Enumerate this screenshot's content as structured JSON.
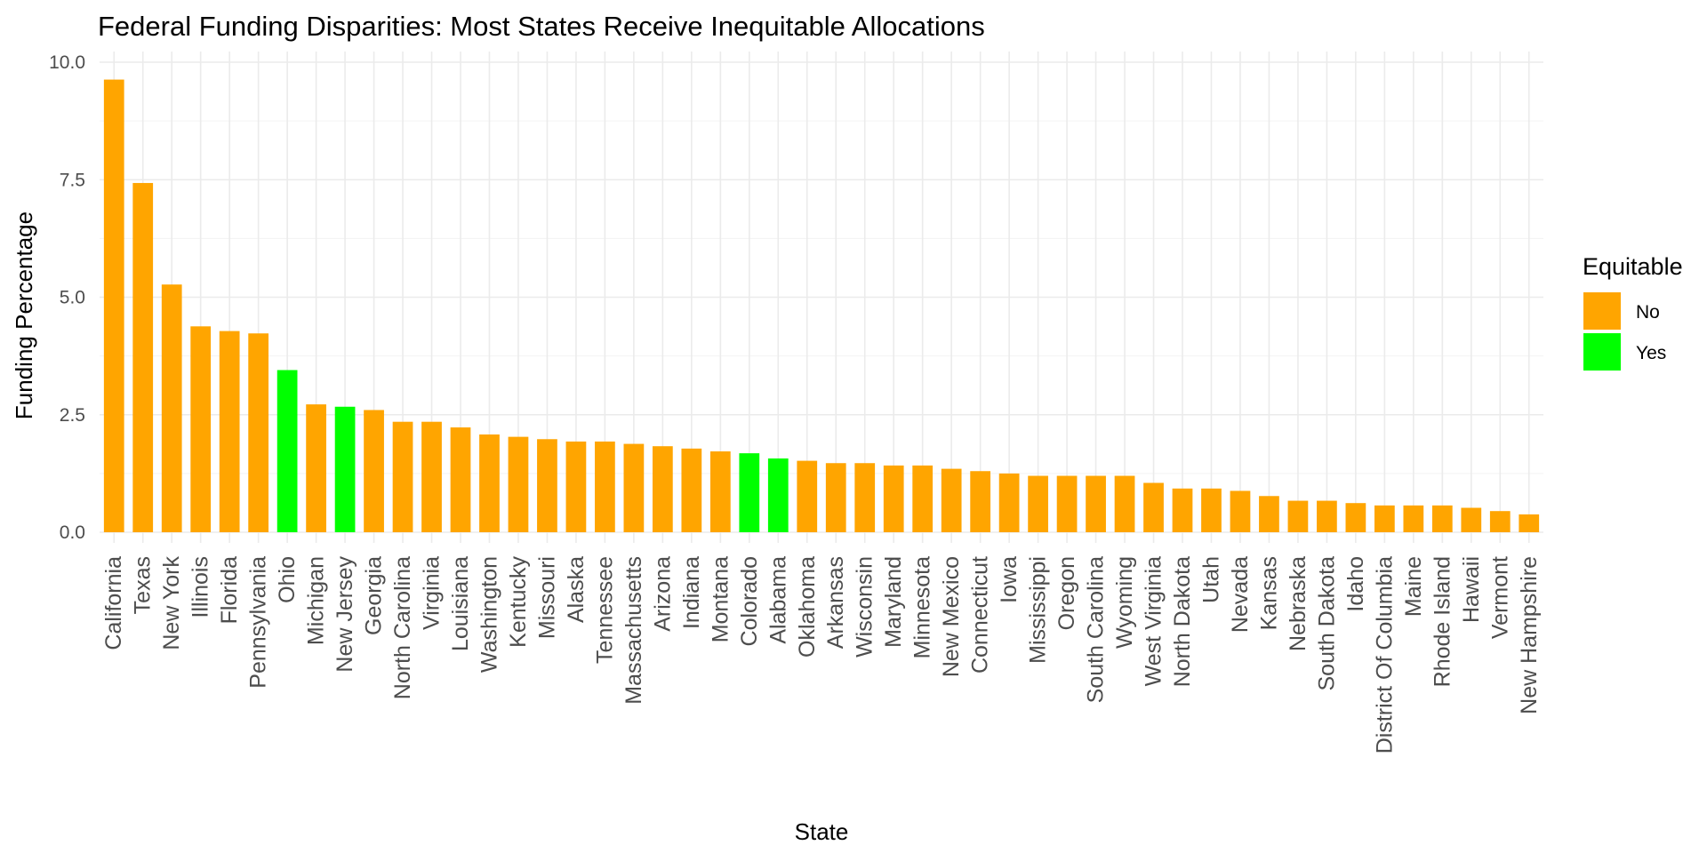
{
  "chart_data": {
    "type": "bar",
    "title": "Federal Funding Disparities: Most States Receive Inequitable Allocations",
    "xlabel": "State",
    "ylabel": "Funding Percentage",
    "ylim": [
      0,
      10
    ],
    "yticks": [
      0,
      2.5,
      5,
      7.5,
      10
    ],
    "ytick_labels": [
      "0.0",
      "2.5",
      "5.0",
      "7.5",
      "10.0"
    ],
    "grid": true,
    "legend": {
      "title": "Equitable",
      "placement": "right",
      "entries": [
        {
          "label": "No",
          "color": "#FFA500"
        },
        {
          "label": "Yes",
          "color": "#00FF00"
        }
      ]
    },
    "categories": [
      "California",
      "Texas",
      "New York",
      "Illinois",
      "Florida",
      "Pennsylvania",
      "Ohio",
      "Michigan",
      "New Jersey",
      "Georgia",
      "North Carolina",
      "Virginia",
      "Louisiana",
      "Washington",
      "Kentucky",
      "Missouri",
      "Alaska",
      "Tennessee",
      "Massachusetts",
      "Arizona",
      "Indiana",
      "Montana",
      "Colorado",
      "Alabama",
      "Oklahoma",
      "Arkansas",
      "Wisconsin",
      "Maryland",
      "Minnesota",
      "New Mexico",
      "Connecticut",
      "Iowa",
      "Mississippi",
      "Oregon",
      "South Carolina",
      "Wyoming",
      "West Virginia",
      "North Dakota",
      "Utah",
      "Nevada",
      "Kansas",
      "Nebraska",
      "South Dakota",
      "Idaho",
      "District Of Columbia",
      "Maine",
      "Rhode Island",
      "Hawaii",
      "Vermont",
      "New Hampshire"
    ],
    "values": [
      9.63,
      7.43,
      5.27,
      4.38,
      4.28,
      4.23,
      3.45,
      2.72,
      2.67,
      2.6,
      2.35,
      2.35,
      2.23,
      2.08,
      2.03,
      1.98,
      1.93,
      1.93,
      1.88,
      1.83,
      1.78,
      1.72,
      1.68,
      1.57,
      1.52,
      1.47,
      1.47,
      1.42,
      1.42,
      1.35,
      1.3,
      1.25,
      1.2,
      1.2,
      1.2,
      1.2,
      1.05,
      0.93,
      0.93,
      0.88,
      0.77,
      0.67,
      0.67,
      0.62,
      0.57,
      0.57,
      0.57,
      0.52,
      0.45,
      0.38
    ],
    "equitable": [
      "No",
      "No",
      "No",
      "No",
      "No",
      "No",
      "Yes",
      "No",
      "Yes",
      "No",
      "No",
      "No",
      "No",
      "No",
      "No",
      "No",
      "No",
      "No",
      "No",
      "No",
      "No",
      "No",
      "Yes",
      "Yes",
      "No",
      "No",
      "No",
      "No",
      "No",
      "No",
      "No",
      "No",
      "No",
      "No",
      "No",
      "No",
      "No",
      "No",
      "No",
      "No",
      "No",
      "No",
      "No",
      "No",
      "No",
      "No",
      "No",
      "No",
      "No",
      "No"
    ]
  }
}
